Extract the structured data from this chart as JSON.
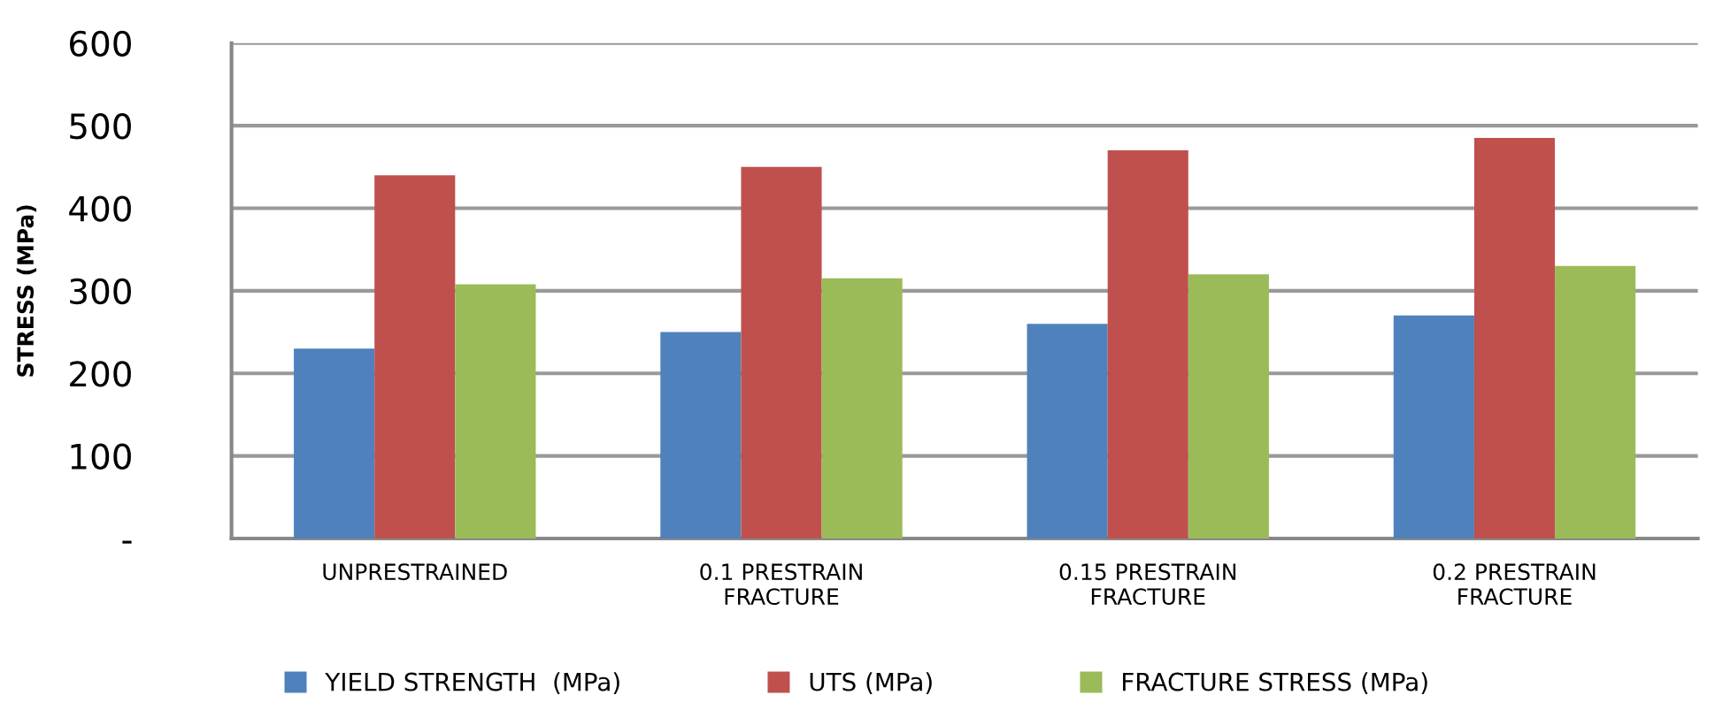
{
  "chart_data": {
    "type": "bar",
    "ylabel": "STRESS (MPa)",
    "categories": [
      "UNPRESTRAINED",
      "0.1 PRESTRAIN FRACTURE",
      "0.15 PRESTRAIN FRACTURE",
      "0.2 PRESTRAIN FRACTURE"
    ],
    "series": [
      {
        "name": "YIELD STRENGTH  (MPa)",
        "color": "#4f81bd",
        "values": [
          230,
          250,
          260,
          270
        ]
      },
      {
        "name": "UTS (MPa)",
        "color": "#c0504d",
        "values": [
          440,
          450,
          470,
          485
        ]
      },
      {
        "name": "FRACTURE STRESS (MPa)",
        "color": "#9bbb59",
        "values": [
          308,
          315,
          320,
          330
        ]
      }
    ],
    "ylim": [
      0,
      600
    ],
    "yticks": [
      {
        "value": 0,
        "label": "-"
      },
      100,
      200,
      300,
      400,
      500,
      600
    ],
    "grid": "y",
    "legend": "bottom"
  }
}
